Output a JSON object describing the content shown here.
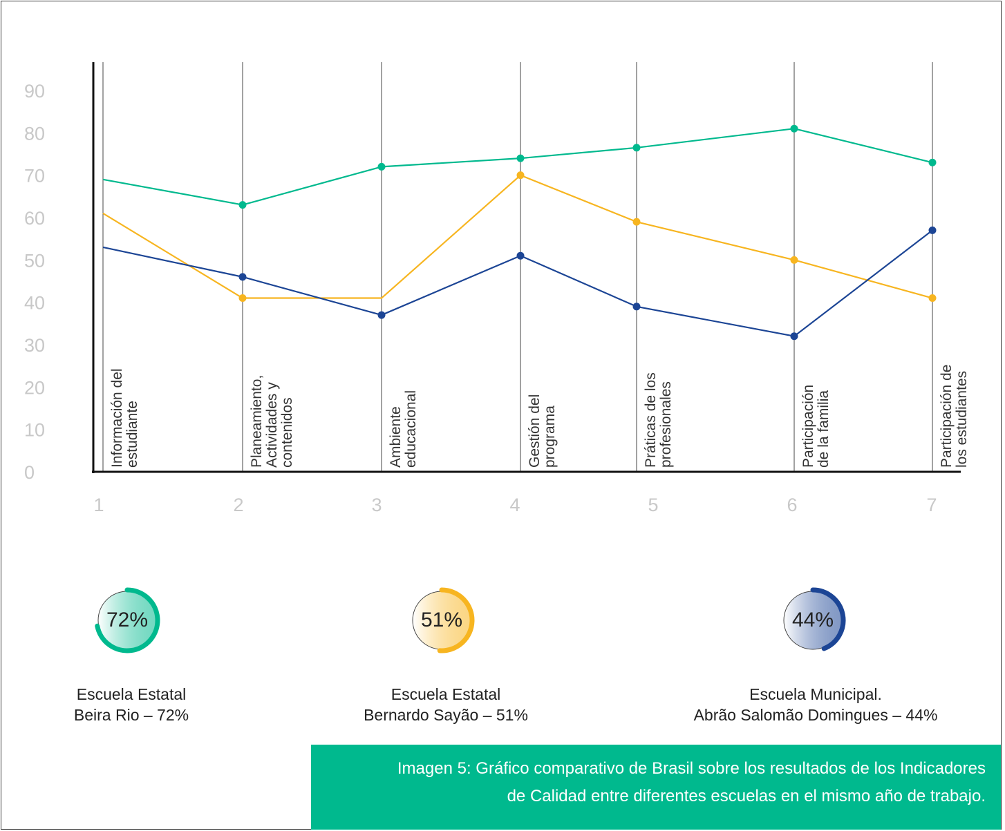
{
  "chart_data": {
    "type": "line",
    "x": [
      1,
      2,
      3,
      4,
      5,
      6,
      7
    ],
    "categories": [
      "Información del estudiante",
      "Planeamiento, Actividades y contenidos",
      "Ambiente educacional",
      "Gestión del programa",
      "Práticas de los profesionales",
      "Participación de la familia",
      "Participación de los estudiantes"
    ],
    "yticks": [
      0,
      10,
      20,
      30,
      40,
      50,
      60,
      70,
      80,
      90
    ],
    "ylim": [
      0,
      90
    ],
    "grid": false,
    "series": [
      {
        "color": "#00b98e",
        "values": [
          69,
          63,
          72,
          74,
          76.5,
          81,
          73
        ],
        "markers": [
          false,
          true,
          true,
          true,
          true,
          true,
          true
        ]
      },
      {
        "color": "#f7b520",
        "values": [
          61,
          41,
          41,
          70,
          59,
          50,
          41
        ],
        "markers": [
          false,
          true,
          false,
          true,
          true,
          true,
          true
        ]
      },
      {
        "color": "#1c4595",
        "values": [
          53,
          46,
          37,
          51,
          39,
          32,
          57
        ],
        "markers": [
          false,
          true,
          true,
          true,
          true,
          true,
          true
        ]
      }
    ]
  },
  "gauges": [
    {
      "label": "72%",
      "value": 72,
      "color": "#00b98e",
      "light": "#e3f6f0"
    },
    {
      "label": "51%",
      "value": 51,
      "color": "#f7b520",
      "light": "#fff8e6"
    },
    {
      "label": "44%",
      "value": 44,
      "color": "#1c4595",
      "light": "#eef1f7"
    }
  ],
  "schools": [
    {
      "line1": "Escuela Estatal",
      "line2": "Beira Rio – 72%"
    },
    {
      "line1": "Escuela Estatal",
      "line2": "Bernardo Sayão – 51%"
    },
    {
      "line1": "Escuela Municipal.",
      "line2": "Abrão Salomão Domingues – 44%"
    }
  ],
  "caption": {
    "line1": "Imagen 5: Gráfico comparativo de Brasil sobre los resultados de los Indicadores",
    "line2": "de Calidad entre diferentes escuelas en el mismo año de trabajo."
  }
}
